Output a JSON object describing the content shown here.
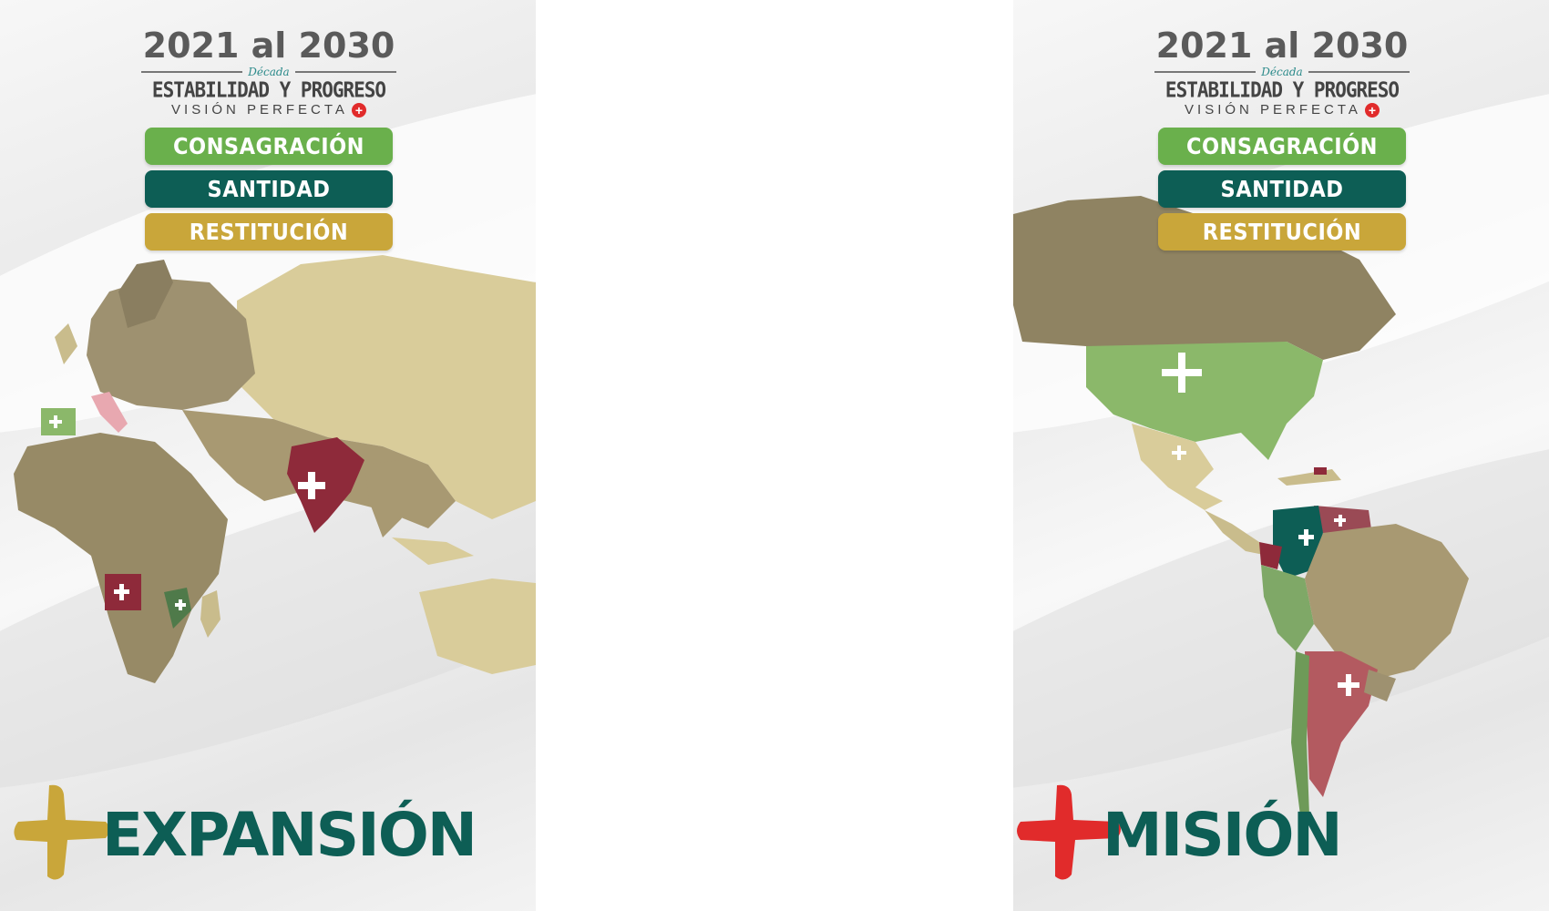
{
  "left_poster": {
    "years": "2021 al 2030",
    "decade_label": "Década",
    "motto": "ESTABILIDAD Y PROGRESO",
    "vision": "VISIÓN PERFECTA",
    "pills": [
      "CONSAGRACIÓN",
      "SANTIDAD",
      "RESTITUCIÓN"
    ],
    "footer_word": "EXPANSIÓN",
    "cross_color": "#c9a63a"
  },
  "right_poster": {
    "years": "2021 al 2030",
    "decade_label": "Década",
    "motto": "ESTABILIDAD Y PROGRESO",
    "vision": "VISIÓN PERFECTA",
    "pills": [
      "CONSAGRACIÓN",
      "SANTIDAD",
      "RESTITUCIÓN"
    ],
    "footer_word": "MISIÓN",
    "cross_color": "#e12b2b"
  },
  "colors": {
    "pill_green": "#6ab04c",
    "pill_teal": "#0d5e55",
    "pill_gold": "#c9a63a",
    "map_sepia": "#b8a97c",
    "map_light": "#d9cc9a",
    "map_green": "#8bb86a",
    "map_red": "#8e2a3a"
  },
  "icons": [
    "plus-cross-icon",
    "world-map-eastern-hemisphere",
    "world-map-americas"
  ]
}
